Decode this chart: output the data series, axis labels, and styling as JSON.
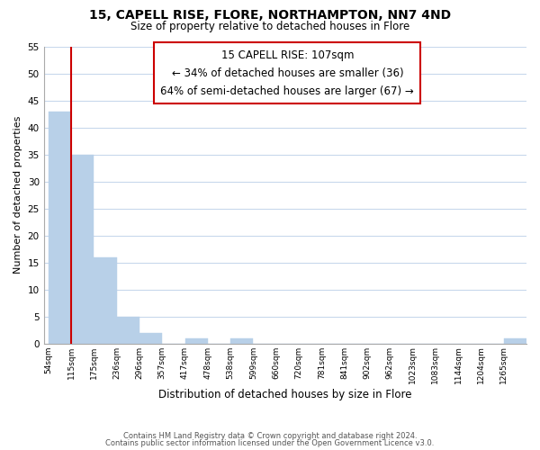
{
  "title": "15, CAPELL RISE, FLORE, NORTHAMPTON, NN7 4ND",
  "subtitle": "Size of property relative to detached houses in Flore",
  "xlabel": "Distribution of detached houses by size in Flore",
  "ylabel": "Number of detached properties",
  "bin_labels": [
    "54sqm",
    "115sqm",
    "175sqm",
    "236sqm",
    "296sqm",
    "357sqm",
    "417sqm",
    "478sqm",
    "538sqm",
    "599sqm",
    "660sqm",
    "720sqm",
    "781sqm",
    "841sqm",
    "902sqm",
    "962sqm",
    "1023sqm",
    "1083sqm",
    "1144sqm",
    "1204sqm",
    "1265sqm"
  ],
  "bar_heights": [
    43,
    35,
    16,
    5,
    2,
    0,
    1,
    0,
    1,
    0,
    0,
    0,
    0,
    0,
    0,
    0,
    0,
    0,
    0,
    0,
    1
  ],
  "bar_color": "#b8d0e8",
  "marker_line_color": "#cc0000",
  "ylim": [
    0,
    55
  ],
  "yticks": [
    0,
    5,
    10,
    15,
    20,
    25,
    30,
    35,
    40,
    45,
    50,
    55
  ],
  "annotation_title": "15 CAPELL RISE: 107sqm",
  "annotation_line1": "← 34% of detached houses are smaller (36)",
  "annotation_line2": "64% of semi-detached houses are larger (67) →",
  "annotation_box_color": "#ffffff",
  "annotation_box_edge": "#cc0000",
  "footer_line1": "Contains HM Land Registry data © Crown copyright and database right 2024.",
  "footer_line2": "Contains public sector information licensed under the Open Government Licence v3.0.",
  "background_color": "#ffffff",
  "grid_color": "#c8d8ec"
}
